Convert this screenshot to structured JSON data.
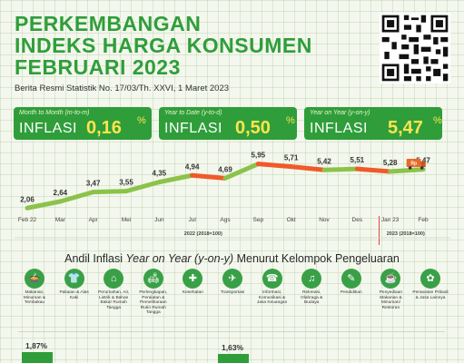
{
  "header": {
    "title_lines": [
      "PERKEMBANGAN",
      "INDEKS HARGA KONSUMEN",
      "FEBRUARI 2023"
    ],
    "subtitle": "Berita Resmi Statistik No. 17/03/Th. XXVI, 1 Maret 2023"
  },
  "cards": [
    {
      "caption": "Month to Month (m-to-m)",
      "label": "INFLASI",
      "value": "0,16",
      "unit": "%"
    },
    {
      "caption": "Year to Date (y-to-d)",
      "label": "INFLASI",
      "value": "0,50",
      "unit": "%"
    },
    {
      "caption": "Year on Year (y-on-y)",
      "label": "INFLASI",
      "value": "5,47",
      "unit": "%"
    }
  ],
  "chart_data": {
    "type": "line",
    "categories": [
      "Feb 22",
      "Mar",
      "Apr",
      "Mei",
      "Jun",
      "Jul",
      "Ags",
      "Sep",
      "Okt",
      "Nov",
      "Des",
      "Jan 23",
      "Feb"
    ],
    "series": [
      {
        "values": [
          2.06,
          2.64,
          3.47,
          3.55,
          4.35,
          4.94,
          4.69,
          5.95,
          5.71,
          5.42,
          5.51,
          5.28,
          5.47
        ]
      }
    ],
    "value_labels": [
      "2,06",
      "2,64",
      "3,47",
      "3,55",
      "4,35",
      "4,94",
      "4,69",
      "5,95",
      "5,71",
      "5,42",
      "5,51",
      "5,28",
      "5,47"
    ],
    "base_labels": [
      "2022 (2018=100)",
      "2023 (2018=100)"
    ],
    "colors": {
      "rise": "#8bc34a",
      "fall": "#f05a28"
    },
    "truck_label": "Rp"
  },
  "contrib": {
    "title_prefix": "Andil Inflasi ",
    "title_italic": "Year on Year (y-on-y)",
    "title_suffix": " Menurut Kelompok Pengeluaran",
    "groups": [
      {
        "icon": "food-icon",
        "glyph": "🍲",
        "label": "Makanan, Minuman & Tembakau"
      },
      {
        "icon": "clothing-icon",
        "glyph": "👕",
        "label": "Pakaian & Alas Kaki"
      },
      {
        "icon": "house-icon",
        "glyph": "⌂",
        "label": "Perumahan, Air, Listrik & Bahan Bakar Rumah Tangga"
      },
      {
        "icon": "furniture-icon",
        "glyph": "🛋",
        "label": "Perlengkapan, Peralatan & Pemeliharaan Rutin Rumah Tangga"
      },
      {
        "icon": "health-icon",
        "glyph": "✚",
        "label": "Kesehatan"
      },
      {
        "icon": "plane-icon",
        "glyph": "✈",
        "label": "Transportasi"
      },
      {
        "icon": "phone-icon",
        "glyph": "☎",
        "label": "Informasi, Komunikasi & Jasa Keuangan"
      },
      {
        "icon": "recreation-icon",
        "glyph": "♫",
        "label": "Rekreasi, Olahraga & Budaya"
      },
      {
        "icon": "education-icon",
        "glyph": "✎",
        "label": "Pendidikan"
      },
      {
        "icon": "restaurant-icon",
        "glyph": "☕",
        "label": "Penyediaan Makanan & Minuman/ Restoran"
      },
      {
        "icon": "personal-care-icon",
        "glyph": "✿",
        "label": "Perawatan Pribadi & Jasa Lainnya"
      }
    ],
    "bars": [
      {
        "label": "1,87%",
        "value": 1.87
      },
      {
        "label": "1,63%",
        "value": 1.63
      }
    ]
  }
}
